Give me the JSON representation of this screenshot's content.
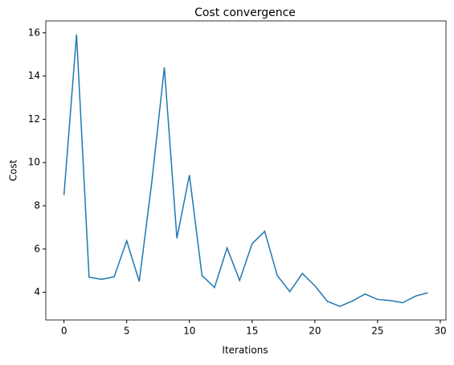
{
  "chart_data": {
    "type": "line",
    "title": "Cost convergence",
    "x_label": "Iterations",
    "y_label": "Cost",
    "x": [
      0,
      1,
      2,
      3,
      4,
      5,
      6,
      7,
      8,
      9,
      10,
      11,
      12,
      13,
      14,
      15,
      16,
      17,
      18,
      19,
      20,
      21,
      22,
      23,
      24,
      25,
      26,
      27,
      28,
      29
    ],
    "series": [
      {
        "name": "Cost",
        "color": "#1f77b4",
        "values": [
          8.5,
          15.92,
          4.7,
          4.6,
          4.72,
          6.38,
          4.5,
          9.1,
          14.4,
          6.5,
          9.42,
          4.78,
          4.22,
          6.05,
          4.55,
          6.25,
          6.82,
          4.78,
          4.03,
          4.87,
          4.3,
          3.58,
          3.35,
          3.6,
          3.92,
          3.67,
          3.62,
          3.52,
          3.82,
          3.98
        ]
      }
    ],
    "xlim": [
      -1.45,
      30.45
    ],
    "xticks": [
      0,
      5,
      10,
      15,
      20,
      25,
      30
    ],
    "ylim": [
      2.72,
      16.55
    ],
    "yticks": [
      4,
      6,
      8,
      10,
      12,
      14,
      16
    ],
    "grid": false
  }
}
